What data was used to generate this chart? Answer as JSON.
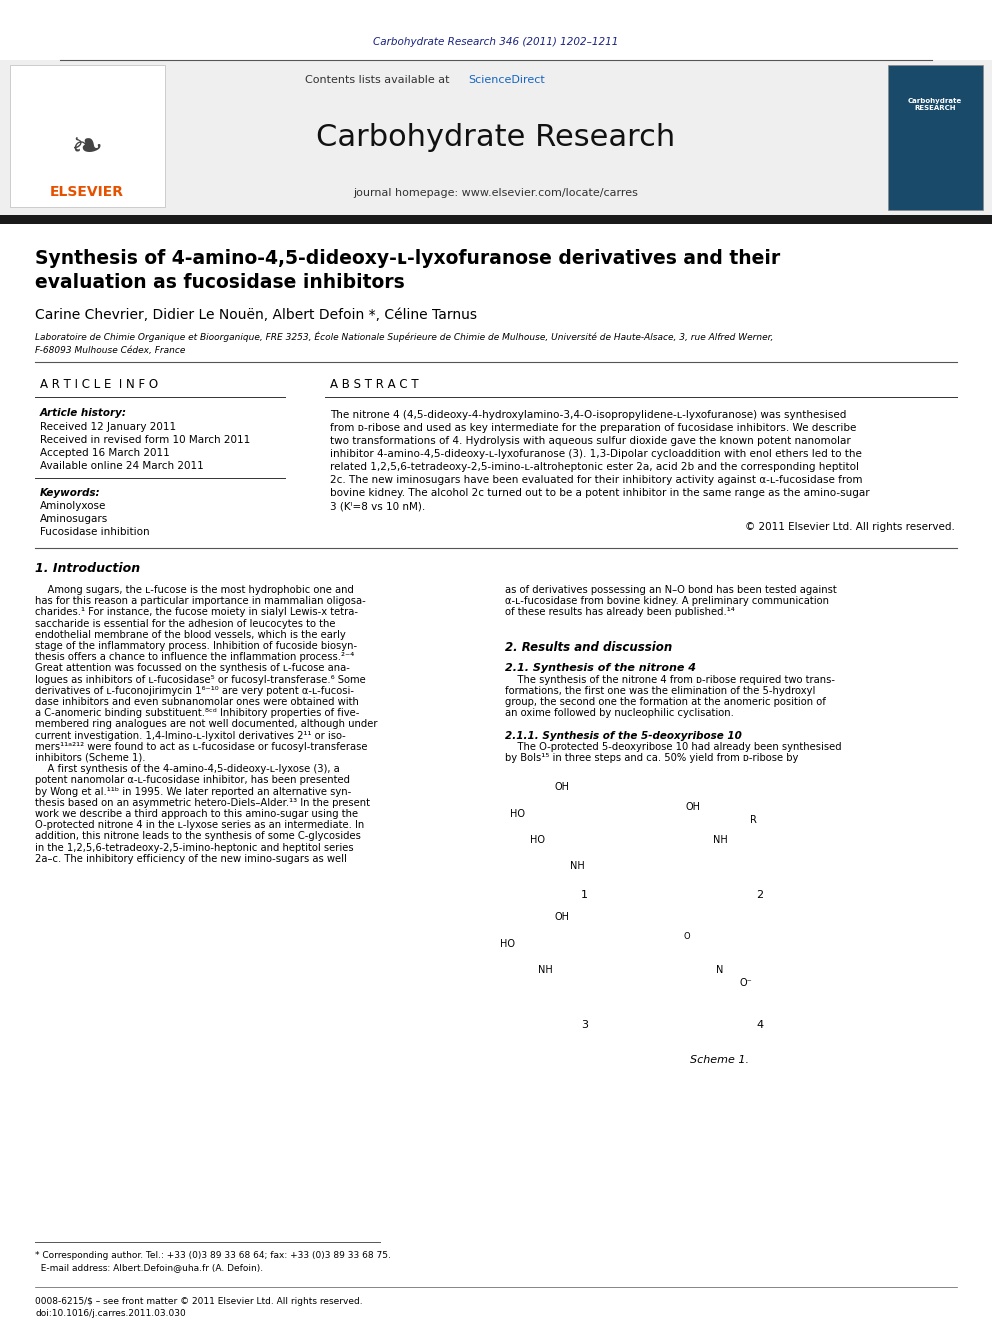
{
  "page_width": 9.92,
  "page_height": 13.23,
  "bg_color": "#ffffff",
  "journal_ref_text": "Carbohydrate Research 346 (2011) 1202–1211",
  "journal_ref_color": "#1a237e",
  "journal_name": "Carbohydrate Research",
  "journal_homepage": "journal homepage: www.elsevier.com/locate/carres",
  "contents_text": "Contents lists available at",
  "sciencedirect_text": "ScienceDirect",
  "sciencedirect_color": "#1565c0",
  "elsevier_color": "#e65100",
  "article_title_line1": "Synthesis of 4-amino-4,5-dideoxy-ʟ-lyxofuranose derivatives and their",
  "article_title_line2": "evaluation as fucosidase inhibitors",
  "authors": "Carine Chevrier, Didier Le Nouën, Albert Defoin *, Céline Tarnus",
  "affil1": "Laboratoire de Chimie Organique et Bioorganique, FRE 3253, École Nationale Supérieure de Chimie de Mulhouse, Université de Haute-Alsace, 3, rue Alfred Werner,",
  "affil2": "F-68093 Mulhouse Cédex, France",
  "article_info_header": "A R T I C L E  I N F O",
  "abstract_header": "A B S T R A C T",
  "article_history_label": "Article history:",
  "received": "Received 12 January 2011",
  "received_revised": "Received in revised form 10 March 2011",
  "accepted": "Accepted 16 March 2011",
  "available": "Available online 24 March 2011",
  "keywords_label": "Keywords:",
  "kw1": "Aminolyxose",
  "kw2": "Aminosugars",
  "kw3": "Fucosidase inhibition",
  "copyright": "© 2011 Elsevier Ltd. All rights reserved.",
  "intro_header": "1. Introduction",
  "results_header": "2. Results and discussion",
  "synthesis_header": "2.1. Synthesis of the nitrone 4",
  "subsection_header": "2.1.1. Synthesis of the 5-deoxyribose 10",
  "scheme_label": "Scheme 1.",
  "footnote1": "* Corresponding author. Tel.: +33 (0)3 89 33 68 64; fax: +33 (0)3 89 33 68 75.",
  "footnote2": "  E-mail address: Albert.Defoin@uha.fr (A. Defoin).",
  "issn1": "0008-6215/$ – see front matter © 2011 Elsevier Ltd. All rights reserved.",
  "issn2": "doi:10.1016/j.carres.2011.03.030",
  "header_bg_color": "#efefef",
  "black_bar_color": "#1a1a1a",
  "separator_color": "#555555",
  "text_color": "#000000",
  "abstract_lines": [
    "The nitrone 4 (4,5-dideoxy-4-hydroxylamino-3,4-O-isopropylidene-ʟ-lyxofuranose) was synthesised",
    "from ᴅ-ribose and used as key intermediate for the preparation of fucosidase inhibitors. We describe",
    "two transformations of 4. Hydrolysis with aqueous sulfur dioxide gave the known potent nanomolar",
    "inhibitor 4-amino-4,5-dideoxy-ʟ-lyxofuranose (3). 1,3-Dipolar cycloaddition with enol ethers led to the",
    "related 1,2,5,6-tetradeoxy-2,5-imino-ʟ-altroheptonic ester 2a, acid 2b and the corresponding heptitol",
    "2c. The new iminosugars have been evaluated for their inhibitory activity against α-ʟ-fucosidase from",
    "bovine kidney. The alcohol 2c turned out to be a potent inhibitor in the same range as the amino-sugar",
    "3 (Kᴵ=8 vs 10 nM)."
  ],
  "intro_left_lines": [
    "    Among sugars, the ʟ-fucose is the most hydrophobic one and",
    "has for this reason a particular importance in mammalian oligosa-",
    "charides.¹ For instance, the fucose moiety in sialyl Lewis-x tetra-",
    "saccharide is essential for the adhesion of leucocytes to the",
    "endothelial membrane of the blood vessels, which is the early",
    "stage of the inflammatory process. Inhibition of fucoside biosyn-",
    "thesis offers a chance to influence the inflammation process.²⁻⁴",
    "Great attention was focussed on the synthesis of ʟ-fucose ana-",
    "logues as inhibitors of ʟ-fucosidase⁵ or fucosyl-transferase.⁶ Some",
    "derivatives of ʟ-fuconojirimycin 1⁶⁻¹⁰ are very potent α-ʟ-fucosi-",
    "dase inhibitors and even subnanomolar ones were obtained with",
    "a C-anomeric binding substituent.⁸ᶜᵈ Inhibitory properties of five-",
    "membered ring analogues are not well documented, although under",
    "current investigation. 1,4-Imino-ʟ-lyxitol derivatives 2¹¹ or iso-",
    "mers¹¹ᵃ²¹² were found to act as ʟ-fucosidase or fucosyl-transferase",
    "inhibitors (Scheme 1).",
    "    A first synthesis of the 4-amino-4,5-dideoxy-ʟ-lyxose (3), a",
    "potent nanomolar α-ʟ-fucosidase inhibitor, has been presented",
    "by Wong et al.¹¹ᵇ in 1995. We later reported an alternative syn-",
    "thesis based on an asymmetric hetero-Diels–Alder.¹³ In the present",
    "work we describe a third approach to this amino-sugar using the",
    "O-protected nitrone 4 in the ʟ-lyxose series as an intermediate. In",
    "addition, this nitrone leads to the synthesis of some C-glycosides",
    "in the 1,2,5,6-tetradeoxy-2,5-imino-heptonic and heptitol series",
    "2a–c. The inhibitory efficiency of the new imino-sugars as well"
  ],
  "intro_right_lines": [
    "as of derivatives possessing an N–O bond has been tested against",
    "α-ʟ-fucosidase from bovine kidney. A preliminary communication",
    "of these results has already been published.¹⁴"
  ],
  "results_lines": [
    "    The synthesis of the nitrone 4 from ᴅ-ribose required two trans-",
    "formations, the first one was the elimination of the 5-hydroxyl",
    "group, the second one the formation at the anomeric position of",
    "an oxime followed by nucleophilic cyclisation."
  ],
  "subsection_lines": [
    "    The O-protected 5-deoxyribose 10 had already been synthesised",
    "by Bols¹⁵ in three steps and ca. 50% yield from ᴅ-ribose by"
  ]
}
